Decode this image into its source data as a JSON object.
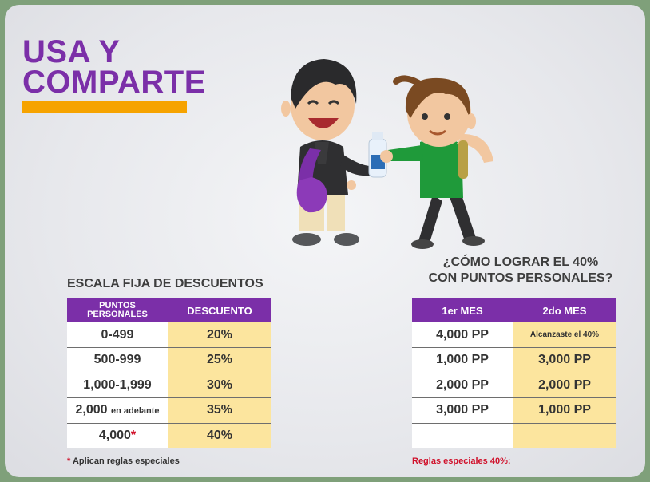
{
  "title": {
    "line1": "USA Y",
    "line2": "COMPARTE"
  },
  "colors": {
    "purple": "#7b2fa8",
    "orange": "#f6a300",
    "yellow": "#fce59e",
    "red": "#d0102a"
  },
  "left_table": {
    "heading": "ESCALA FIJA DE DESCUENTOS",
    "col1_line1": "PUNTOS",
    "col1_line2": "PERSONALES",
    "col2": "DESCUENTO",
    "rows": [
      {
        "points": "0-499",
        "discount": "20%"
      },
      {
        "points": "500-999",
        "discount": "25%"
      },
      {
        "points": "1,000-1,999",
        "discount": "30%"
      },
      {
        "points": "2,000",
        "points_suffix": "en adelante",
        "discount": "35%"
      },
      {
        "points": "4,000",
        "points_mark": "*",
        "discount": "40%"
      }
    ],
    "footnote_mark": "*",
    "footnote": "Aplican reglas especiales"
  },
  "right_table": {
    "heading_line1": "¿CÓMO LOGRAR EL 40%",
    "heading_line2": "CON PUNTOS PERSONALES?",
    "col1": "1er MES",
    "col2": "2do MES",
    "rows": [
      {
        "m1": "4,000 PP",
        "m2": "Alcanzaste el 40%"
      },
      {
        "m1": "1,000 PP",
        "m2": "3,000 PP"
      },
      {
        "m1": "2,000 PP",
        "m2": "2,000 PP"
      },
      {
        "m1": "3,000 PP",
        "m2": "1,000 PP"
      },
      {
        "m1": "",
        "m2": ""
      }
    ],
    "footnote": "Reglas especiales 40%:"
  }
}
